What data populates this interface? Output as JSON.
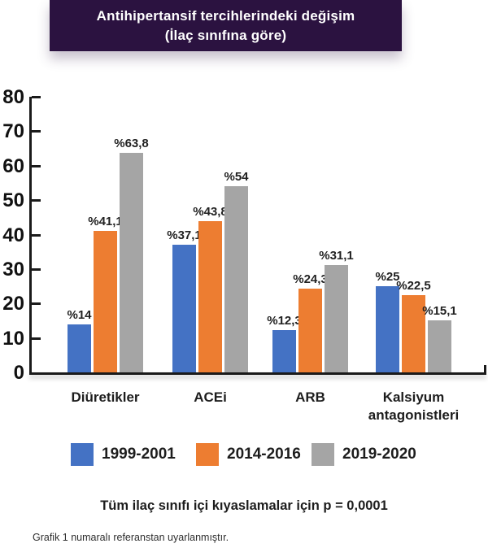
{
  "header": {
    "title_line1": "Antihipertansif tercihlerindeki değişim",
    "title_line2": "(İlaç sınıfına göre)",
    "bg_color": "#2b1240",
    "text_color": "#ffffff"
  },
  "chart_data": {
    "type": "bar",
    "title": "Antihipertansif tercihlerindeki değişim (İlaç sınıfına göre)",
    "categories": [
      "Diüretikler",
      "ACEi",
      "ARB",
      "Kalsiyum antagonistleri"
    ],
    "series": [
      {
        "name": "1999-2001",
        "color": "#4472C4",
        "values": [
          14,
          37.1,
          12.3,
          25
        ],
        "labels": [
          "%14",
          "%37,1",
          "%12,3",
          "%25"
        ]
      },
      {
        "name": "2014-2016",
        "color": "#ED7D31",
        "values": [
          41.1,
          43.8,
          24.3,
          22.5
        ],
        "labels": [
          "%41,1",
          "%43,8",
          "%24,3",
          "%22,5"
        ]
      },
      {
        "name": "2019-2020",
        "color": "#A5A5A5",
        "values": [
          63.8,
          54,
          31.1,
          15.1
        ],
        "labels": [
          "%63,8",
          "%54",
          "%31,1",
          "%15,1"
        ]
      }
    ],
    "xlabel": "",
    "ylabel": "",
    "ylim": [
      0,
      80
    ],
    "yticks": [
      0,
      10,
      20,
      30,
      40,
      50,
      60,
      70,
      80
    ],
    "grid": false,
    "legend_position": "bottom",
    "axis_color": "#1a1a1a"
  },
  "footer": {
    "p_note": "Tüm ilaç sınıfı içi kıyaslamalar için p = 0,0001",
    "source_note": "Grafik 1 numaralı referanstan uyarlanmıştır."
  }
}
